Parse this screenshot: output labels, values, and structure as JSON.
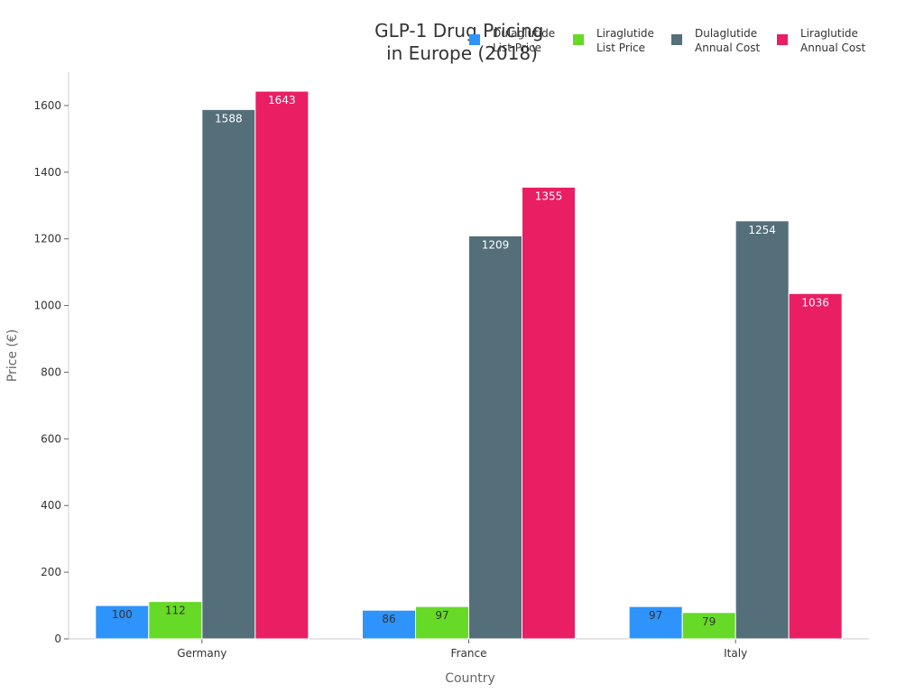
{
  "chart_data": {
    "type": "bar",
    "title": [
      "GLP-1 Drug Pricing",
      "in Europe (2018)"
    ],
    "xlabel": "Country",
    "ylabel": "Price (€)",
    "categories": [
      "Germany",
      "France",
      "Italy"
    ],
    "ylim": [
      0,
      1700
    ],
    "yticks": [
      0,
      200,
      400,
      600,
      800,
      1000,
      1200,
      1400,
      1600
    ],
    "grid": false,
    "legend_position": "top-right",
    "series": [
      {
        "name": [
          "Dulaglutide",
          "List Price"
        ],
        "color": "#2E93FA",
        "label_color": "#333333",
        "values": [
          100,
          86,
          97
        ]
      },
      {
        "name": [
          "Liraglutide",
          "List Price"
        ],
        "color": "#66DA26",
        "label_color": "#333333",
        "values": [
          112,
          97,
          79
        ]
      },
      {
        "name": [
          "Dulaglutide",
          "Annual Cost"
        ],
        "color": "#546E7A",
        "label_color": "#ffffff",
        "values": [
          1588,
          1209,
          1254
        ]
      },
      {
        "name": [
          "Liraglutide",
          "Annual Cost"
        ],
        "color": "#E91E63",
        "label_color": "#ffffff",
        "values": [
          1643,
          1355,
          1036
        ]
      }
    ]
  }
}
